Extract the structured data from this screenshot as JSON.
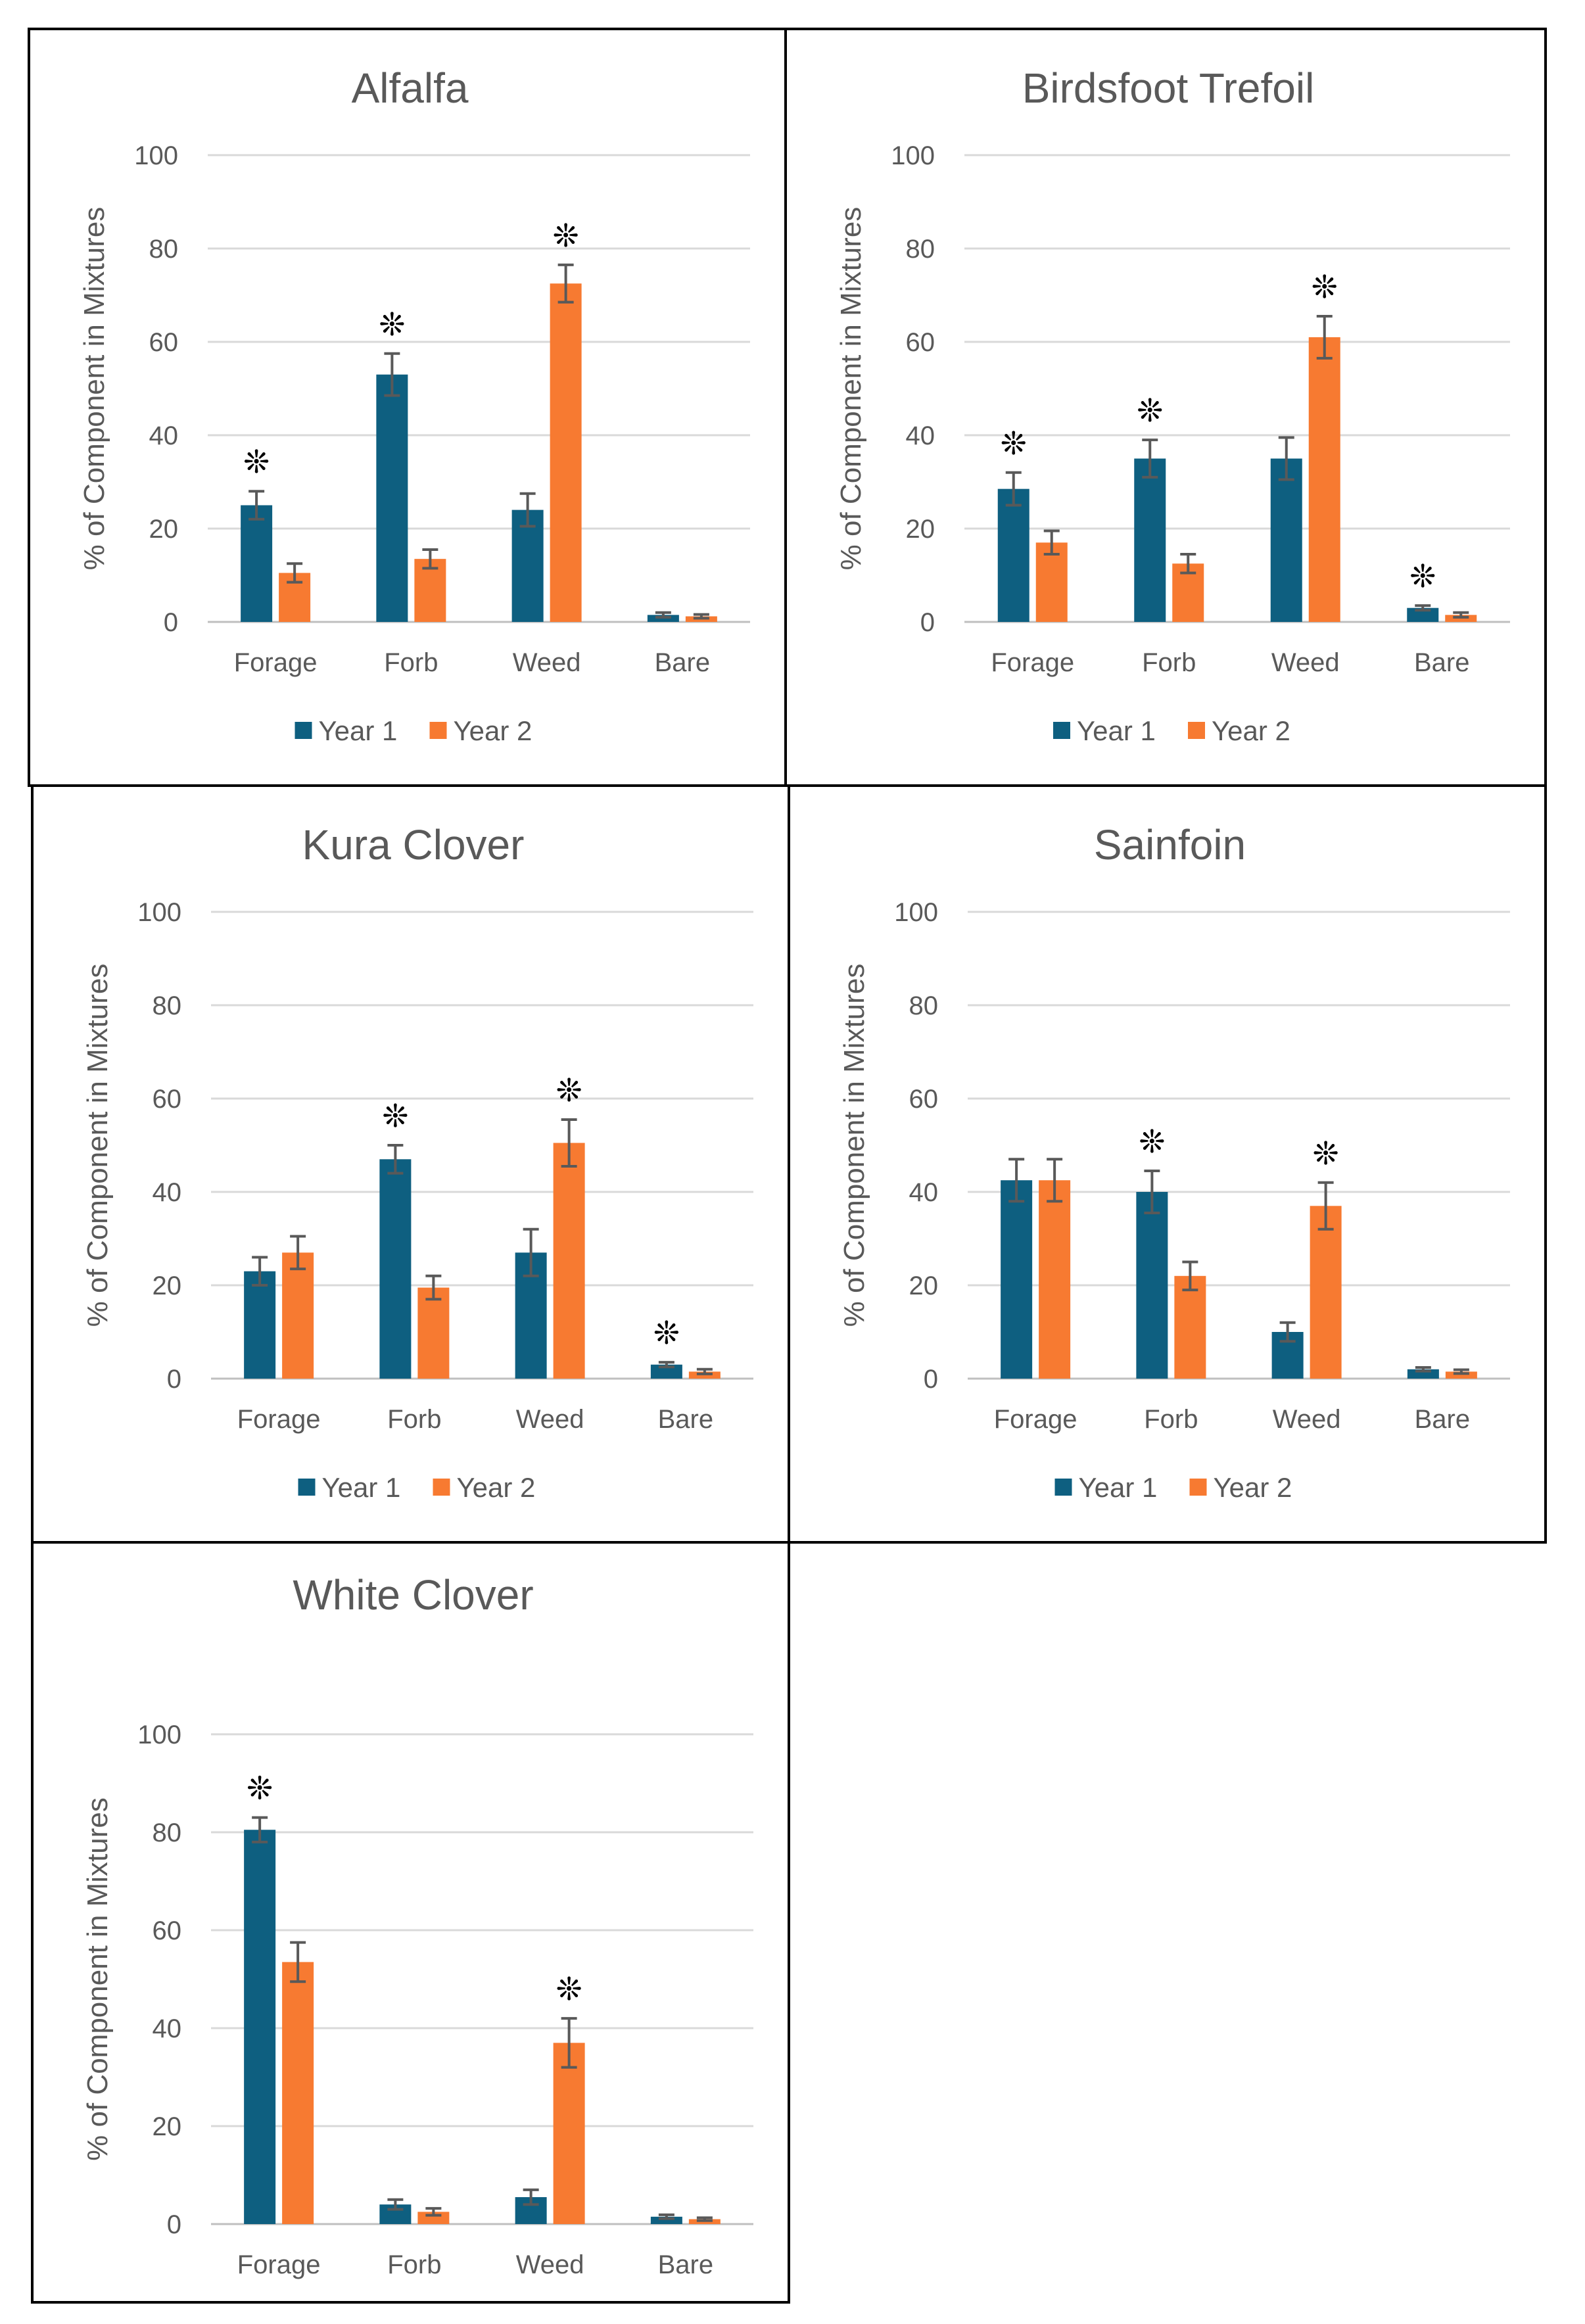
{
  "colors": {
    "year1": "#0e5f80",
    "year2": "#f77a31"
  },
  "chart_data": [
    {
      "type": "bar",
      "title": "Alfalfa",
      "ylabel": "% of Component in Mixtures",
      "xlabel": "",
      "ylim": [
        0,
        100
      ],
      "yticks": [
        "0",
        "20",
        "40",
        "60",
        "80",
        "100"
      ],
      "categories": [
        "Forage",
        "Forb",
        "Weed",
        "Bare"
      ],
      "series": [
        {
          "name": "Year 1",
          "values": [
            25,
            53,
            24,
            1.5
          ],
          "errors": [
            3,
            4.5,
            3.5,
            0.5
          ]
        },
        {
          "name": "Year 2",
          "values": [
            10.5,
            13.5,
            72.5,
            1.2
          ],
          "errors": [
            2,
            2,
            4,
            0.4
          ]
        }
      ],
      "significance": [
        {
          "category": "Forage",
          "mark": "❊"
        },
        {
          "category": "Forb",
          "mark": "❊"
        },
        {
          "category": "Weed",
          "mark": "❊"
        }
      ],
      "legend": "bottom"
    },
    {
      "type": "bar",
      "title": "Birdsfoot Trefoil",
      "ylabel": "% of Component in Mixtures",
      "xlabel": "",
      "ylim": [
        0,
        100
      ],
      "yticks": [
        "0",
        "20",
        "40",
        "60",
        "80",
        "100"
      ],
      "categories": [
        "Forage",
        "Forb",
        "Weed",
        "Bare"
      ],
      "series": [
        {
          "name": "Year 1",
          "values": [
            28.5,
            35,
            35,
            3
          ],
          "errors": [
            3.5,
            4,
            4.5,
            0.5
          ]
        },
        {
          "name": "Year 2",
          "values": [
            17,
            12.5,
            61,
            1.5
          ],
          "errors": [
            2.5,
            2,
            4.5,
            0.5
          ]
        }
      ],
      "significance": [
        {
          "category": "Forage",
          "mark": "❊"
        },
        {
          "category": "Forb",
          "mark": "❊"
        },
        {
          "category": "Weed",
          "mark": "❊"
        },
        {
          "category": "Bare",
          "mark": "❊"
        }
      ],
      "legend": "bottom"
    },
    {
      "type": "bar",
      "title": "Kura Clover",
      "ylabel": "% of Component in Mixtures",
      "xlabel": "",
      "ylim": [
        0,
        100
      ],
      "yticks": [
        "0",
        "20",
        "40",
        "60",
        "80",
        "100"
      ],
      "categories": [
        "Forage",
        "Forb",
        "Weed",
        "Bare"
      ],
      "series": [
        {
          "name": "Year 1",
          "values": [
            23,
            47,
            27,
            3
          ],
          "errors": [
            3,
            3,
            5,
            0.5
          ]
        },
        {
          "name": "Year 2",
          "values": [
            27,
            19.5,
            50.5,
            1.5
          ],
          "errors": [
            3.5,
            2.5,
            5,
            0.5
          ]
        }
      ],
      "significance": [
        {
          "category": "Forb",
          "mark": "❊"
        },
        {
          "category": "Weed",
          "mark": "❊"
        },
        {
          "category": "Bare",
          "mark": "❊"
        }
      ],
      "legend": "bottom"
    },
    {
      "type": "bar",
      "title": "Sainfoin",
      "ylabel": "% of Component in Mixtures",
      "xlabel": "",
      "ylim": [
        0,
        100
      ],
      "yticks": [
        "0",
        "20",
        "40",
        "60",
        "80",
        "100"
      ],
      "categories": [
        "Forage",
        "Forb",
        "Weed",
        "Bare"
      ],
      "series": [
        {
          "name": "Year 1",
          "values": [
            42.5,
            40,
            10,
            2
          ],
          "errors": [
            4.5,
            4.5,
            2,
            0.4
          ]
        },
        {
          "name": "Year 2",
          "values": [
            42.5,
            22,
            37,
            1.5
          ],
          "errors": [
            4.5,
            3,
            5,
            0.4
          ]
        }
      ],
      "significance": [
        {
          "category": "Forb",
          "mark": "❊"
        },
        {
          "category": "Weed",
          "mark": "❊"
        }
      ],
      "legend": "bottom"
    },
    {
      "type": "bar",
      "title": "White Clover",
      "ylabel": "% of Component in Mixtures",
      "xlabel": "",
      "ylim": [
        0,
        100
      ],
      "yticks": [
        "0",
        "20",
        "40",
        "60",
        "80",
        "100"
      ],
      "categories": [
        "Forage",
        "Forb",
        "Weed",
        "Bare"
      ],
      "series": [
        {
          "name": "Year 1",
          "values": [
            80.5,
            4,
            5.5,
            1.5
          ],
          "errors": [
            2.5,
            1,
            1.5,
            0.4
          ]
        },
        {
          "name": "Year 2",
          "values": [
            53.5,
            2.5,
            37,
            1
          ],
          "errors": [
            4,
            0.7,
            5,
            0.3
          ]
        }
      ],
      "significance": [
        {
          "category": "Forage",
          "mark": "❊"
        },
        {
          "category": "Weed",
          "mark": "❊"
        }
      ],
      "legend": "bottom"
    }
  ]
}
